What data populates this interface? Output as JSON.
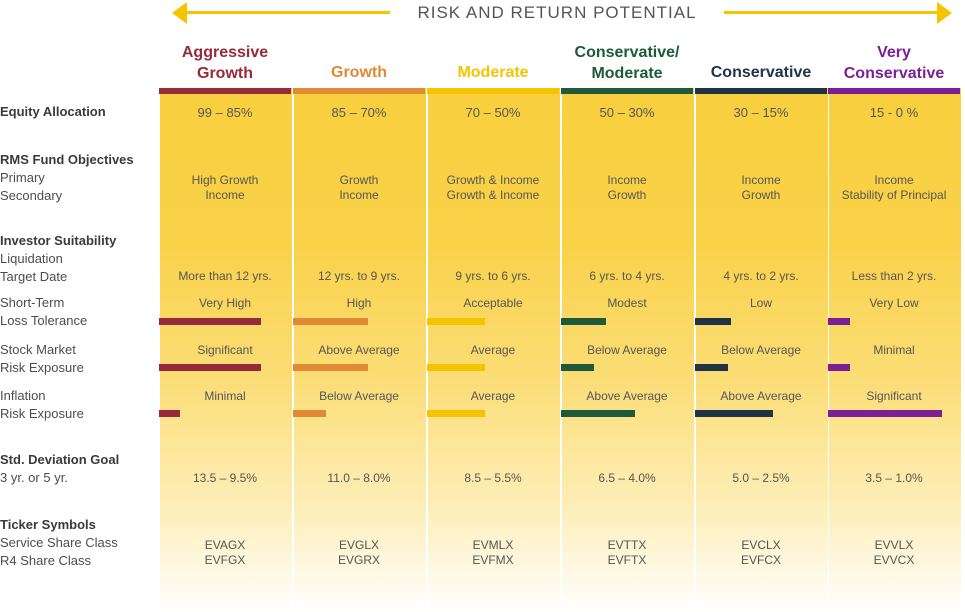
{
  "header": {
    "title": "RISK AND RETURN POTENTIAL"
  },
  "row_labels": {
    "equity_allocation": "Equity Allocation",
    "fund_objectives": "RMS Fund Objectives",
    "primary": "Primary",
    "secondary": "Secondary",
    "investor_suitability": "Investor Suitability",
    "liquidation": "Liquidation",
    "target_date": "Target Date",
    "short_term": "Short-Term",
    "loss_tolerance": "Loss Tolerance",
    "stock_market": "Stock Market",
    "risk_exposure_1": "Risk Exposure",
    "inflation": "Inflation",
    "risk_exposure_2": "Risk Exposure",
    "std_dev": "Std. Deviation Goal",
    "std_dev_period": "3 yr. or 5 yr.",
    "ticker_symbols": "Ticker Symbols",
    "service_class": "Service Share Class",
    "r4_class": "R4 Share Class"
  },
  "columns": [
    {
      "name_line1": "Aggressive",
      "name_line2": "Growth",
      "color": "#962a3a",
      "equity": "99 – 85%",
      "primary": "High Growth",
      "secondary": "Income",
      "target_date": "More than 12 yrs.",
      "loss_tolerance": "Very High",
      "loss_tolerance_level": 0.77,
      "market_risk": "Significant",
      "market_risk_level": 0.77,
      "inflation_risk": "Minimal",
      "inflation_risk_level": 0.16,
      "std_dev": "13.5 – 9.5%",
      "ticker_service": "EVAGX",
      "ticker_r4": "EVFGX"
    },
    {
      "name_line1": "Growth",
      "name_line2": "",
      "color": "#e08a35",
      "equity": "85 – 70%",
      "primary": "Growth",
      "secondary": "Income",
      "target_date": "12 yrs. to 9 yrs.",
      "loss_tolerance": "High",
      "loss_tolerance_level": 0.57,
      "market_risk": "Above Average",
      "market_risk_level": 0.57,
      "inflation_risk": "Below Average",
      "inflation_risk_level": 0.25,
      "std_dev": "11.0 – 8.0%",
      "ticker_service": "EVGLX",
      "ticker_r4": "EVGRX"
    },
    {
      "name_line1": "Moderate",
      "name_line2": "",
      "color": "#f5c400",
      "equity": "70 – 50%",
      "primary": "Growth & Income",
      "secondary": "Growth & Income",
      "target_date": "9 yrs. to 6 yrs.",
      "loss_tolerance": "Acceptable",
      "loss_tolerance_level": 0.44,
      "market_risk": "Average",
      "market_risk_level": 0.44,
      "inflation_risk": "Average",
      "inflation_risk_level": 0.44,
      "std_dev": "8.5 – 5.5%",
      "ticker_service": "EVMLX",
      "ticker_r4": "EVFMX"
    },
    {
      "name_line1": "Conservative/",
      "name_line2": "Moderate",
      "color": "#1e5a3a",
      "equity": "50 – 30%",
      "primary": "Income",
      "secondary": "Growth",
      "target_date": "6 yrs. to 4 yrs.",
      "loss_tolerance": "Modest",
      "loss_tolerance_level": 0.34,
      "market_risk": "Below Average",
      "market_risk_level": 0.25,
      "inflation_risk": "Above Average",
      "inflation_risk_level": 0.56,
      "std_dev": "6.5 – 4.0%",
      "ticker_service": "EVTTX",
      "ticker_r4": "EVFTX"
    },
    {
      "name_line1": "Conservative",
      "name_line2": "",
      "color": "#1f3345",
      "equity": "30 – 15%",
      "primary": "Income",
      "secondary": "Growth",
      "target_date": "4 yrs. to 2 yrs.",
      "loss_tolerance": "Low",
      "loss_tolerance_level": 0.27,
      "market_risk": "Below Average",
      "market_risk_level": 0.25,
      "inflation_risk": "Above Average",
      "inflation_risk_level": 0.59,
      "std_dev": "5.0 – 2.5%",
      "ticker_service": "EVCLX",
      "ticker_r4": "EVFCX"
    },
    {
      "name_line1": "Very",
      "name_line2": "Conservative",
      "color": "#7a1f96",
      "equity": "15 - 0 %",
      "primary": "Income",
      "secondary": "Stability of Principal",
      "target_date": "Less than 2 yrs.",
      "loss_tolerance": "Very Low",
      "loss_tolerance_level": 0.17,
      "market_risk": "Minimal",
      "market_risk_level": 0.17,
      "inflation_risk": "Significant",
      "inflation_risk_level": 0.86,
      "std_dev": "3.5 – 1.0%",
      "ticker_service": "EVVLX",
      "ticker_r4": "EVVCX"
    }
  ]
}
